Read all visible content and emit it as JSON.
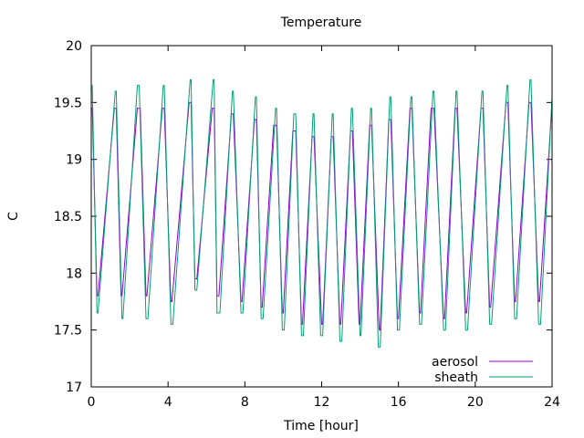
{
  "chart_data": {
    "type": "line",
    "title": "Temperature",
    "xlabel": "Time [hour]",
    "ylabel": "C",
    "xlim": [
      0,
      24
    ],
    "ylim": [
      17,
      20
    ],
    "x_ticks": [
      0,
      4,
      8,
      12,
      16,
      20,
      24
    ],
    "y_ticks": [
      17,
      17.5,
      18,
      18.5,
      19,
      19.5,
      20
    ],
    "y_tick_labels": [
      "17",
      "17.5",
      "18",
      "18.5",
      "19",
      "19.5",
      "20"
    ],
    "grid": false,
    "legend_position": "bottom-right",
    "series": [
      {
        "name": "aerosol",
        "color": "#9400d3",
        "x": [
          0,
          0.05,
          0.3,
          0.35,
          1.2,
          1.3,
          1.55,
          1.6,
          2.4,
          2.55,
          2.85,
          2.9,
          3.7,
          3.8,
          4.15,
          4.2,
          5.1,
          5.2,
          5.4,
          5.5,
          6.3,
          6.4,
          6.55,
          6.65,
          7.3,
          7.4,
          7.8,
          7.85,
          8.5,
          8.6,
          8.85,
          8.9,
          9.5,
          9.65,
          9.95,
          10.0,
          10.5,
          10.65,
          10.95,
          11.0,
          11.5,
          11.6,
          12.0,
          12.05,
          12.5,
          12.6,
          12.95,
          13.0,
          13.5,
          13.6,
          13.95,
          14.0,
          14.5,
          14.6,
          15.0,
          15.05,
          15.5,
          15.6,
          15.95,
          16.0,
          16.6,
          16.7,
          17.1,
          17.15,
          17.7,
          17.85,
          18.35,
          18.4,
          18.95,
          19.05,
          19.5,
          19.55,
          20.3,
          20.4,
          20.75,
          20.8,
          21.6,
          21.7,
          22.05,
          22.1,
          22.8,
          22.9,
          23.3,
          23.35,
          24.0
        ],
        "values": [
          19.45,
          19.45,
          17.8,
          17.8,
          19.45,
          19.45,
          17.8,
          17.8,
          19.45,
          19.45,
          17.8,
          17.8,
          19.45,
          19.45,
          17.75,
          17.75,
          19.5,
          19.5,
          17.95,
          17.95,
          19.45,
          19.45,
          17.8,
          17.8,
          19.4,
          19.4,
          17.75,
          17.75,
          19.35,
          19.35,
          17.7,
          17.7,
          19.3,
          19.3,
          17.65,
          17.65,
          19.25,
          19.25,
          17.55,
          17.55,
          19.2,
          19.2,
          17.55,
          17.55,
          19.2,
          19.2,
          17.55,
          17.55,
          19.25,
          19.25,
          17.55,
          17.55,
          19.3,
          19.3,
          17.5,
          17.5,
          19.35,
          19.35,
          17.6,
          17.6,
          19.45,
          19.45,
          17.65,
          17.65,
          19.45,
          19.45,
          17.6,
          17.6,
          19.45,
          19.45,
          17.65,
          17.65,
          19.45,
          19.45,
          17.7,
          17.7,
          19.5,
          19.5,
          17.75,
          17.75,
          19.5,
          19.5,
          17.75,
          17.75,
          19.5
        ]
      },
      {
        "name": "sheath",
        "color": "#009e73",
        "x": [
          0,
          0.05,
          0.3,
          0.35,
          1.25,
          1.3,
          1.6,
          1.65,
          2.4,
          2.5,
          2.85,
          2.95,
          3.75,
          3.8,
          4.15,
          4.25,
          5.15,
          5.2,
          5.4,
          5.5,
          6.35,
          6.4,
          6.55,
          6.7,
          7.35,
          7.4,
          7.8,
          7.9,
          8.55,
          8.6,
          8.85,
          8.95,
          9.6,
          9.65,
          9.95,
          10.05,
          10.55,
          10.65,
          10.95,
          11.05,
          11.55,
          11.6,
          11.95,
          12.05,
          12.55,
          12.6,
          12.95,
          13.05,
          13.55,
          13.6,
          14.0,
          14.05,
          14.55,
          14.6,
          14.95,
          15.05,
          15.55,
          15.6,
          15.95,
          16.05,
          16.65,
          16.7,
          17.1,
          17.2,
          17.8,
          17.85,
          18.35,
          18.45,
          19.0,
          19.05,
          19.5,
          19.6,
          20.35,
          20.4,
          20.75,
          20.85,
          21.65,
          21.7,
          22.05,
          22.15,
          22.85,
          22.9,
          23.3,
          23.4,
          24.0
        ],
        "values": [
          19.65,
          19.65,
          17.65,
          17.65,
          19.6,
          19.6,
          17.6,
          17.6,
          19.65,
          19.65,
          17.6,
          17.6,
          19.65,
          19.65,
          17.55,
          17.55,
          19.7,
          19.7,
          17.85,
          17.85,
          19.7,
          19.7,
          17.65,
          17.65,
          19.6,
          19.6,
          17.65,
          17.65,
          19.55,
          19.55,
          17.6,
          17.6,
          19.45,
          19.45,
          17.5,
          17.5,
          19.4,
          19.4,
          17.45,
          17.45,
          19.4,
          19.4,
          17.45,
          17.45,
          19.4,
          19.4,
          17.4,
          17.4,
          19.45,
          19.45,
          17.45,
          17.45,
          19.45,
          19.45,
          17.35,
          17.35,
          19.55,
          19.55,
          17.5,
          17.5,
          19.55,
          19.55,
          17.55,
          17.55,
          19.6,
          19.6,
          17.5,
          17.5,
          19.6,
          19.6,
          17.5,
          17.5,
          19.6,
          19.6,
          17.55,
          17.55,
          19.65,
          19.65,
          17.6,
          17.6,
          19.7,
          19.7,
          17.55,
          17.55,
          19.55
        ]
      }
    ]
  }
}
